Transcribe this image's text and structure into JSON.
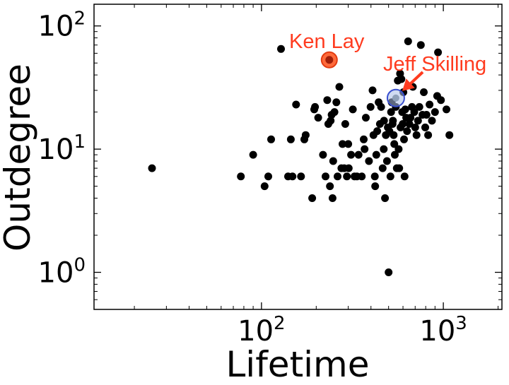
{
  "chart_data": {
    "type": "scatter",
    "xlabel": "Lifetime",
    "ylabel": "Outdegree",
    "xscale": "log",
    "yscale": "log",
    "xlim": [
      12,
      2100
    ],
    "ylim": [
      0.5,
      150
    ],
    "grid": false,
    "x_ticks": [
      {
        "base": "10",
        "exp": "2",
        "value": 100
      },
      {
        "base": "10",
        "exp": "3",
        "value": 1000
      }
    ],
    "y_ticks": [
      {
        "base": "10",
        "exp": "0",
        "value": 1
      },
      {
        "base": "10",
        "exp": "1",
        "value": 10
      },
      {
        "base": "10",
        "exp": "2",
        "value": 100
      }
    ],
    "series": [
      {
        "color": "#000000",
        "points": [
          [
            25,
            7
          ],
          [
            77,
            6
          ],
          [
            90,
            9
          ],
          [
            104,
            5
          ],
          [
            109,
            6
          ],
          [
            113,
            12
          ],
          [
            128,
            65
          ],
          [
            140,
            6
          ],
          [
            145,
            12
          ],
          [
            148,
            6
          ],
          [
            155,
            23
          ],
          [
            165,
            6
          ],
          [
            172,
            12
          ],
          [
            175,
            13
          ],
          [
            190,
            4
          ],
          [
            195,
            21
          ],
          [
            197,
            22
          ],
          [
            205,
            18
          ],
          [
            218,
            9
          ],
          [
            225,
            6
          ],
          [
            230,
            25
          ],
          [
            233,
            16
          ],
          [
            238,
            5
          ],
          [
            240,
            17
          ],
          [
            243,
            19
          ],
          [
            246,
            4
          ],
          [
            248,
            8
          ],
          [
            252,
            20
          ],
          [
            258,
            24
          ],
          [
            262,
            6
          ],
          [
            268,
            32
          ],
          [
            275,
            7
          ],
          [
            279,
            11
          ],
          [
            285,
            7
          ],
          [
            289,
            16
          ],
          [
            295,
            6
          ],
          [
            300,
            11
          ],
          [
            302,
            7
          ],
          [
            311,
            9
          ],
          [
            318,
            21
          ],
          [
            325,
            6
          ],
          [
            335,
            6
          ],
          [
            342,
            9
          ],
          [
            356,
            6
          ],
          [
            365,
            12
          ],
          [
            369,
            10
          ],
          [
            375,
            18
          ],
          [
            390,
            8
          ],
          [
            398,
            22
          ],
          [
            408,
            30
          ],
          [
            413,
            13
          ],
          [
            420,
            6
          ],
          [
            422,
            5
          ],
          [
            428,
            9
          ],
          [
            433,
            14
          ],
          [
            441,
            24
          ],
          [
            448,
            16
          ],
          [
            455,
            22
          ],
          [
            464,
            7
          ],
          [
            470,
            10
          ],
          [
            472,
            17
          ],
          [
            478,
            4
          ],
          [
            483,
            13
          ],
          [
            490,
            8
          ],
          [
            495,
            15
          ],
          [
            500,
            1
          ],
          [
            505,
            14
          ],
          [
            512,
            6
          ],
          [
            516,
            20
          ],
          [
            520,
            24
          ],
          [
            526,
            16
          ],
          [
            528,
            17
          ],
          [
            533,
            13
          ],
          [
            537,
            11
          ],
          [
            541,
            9
          ],
          [
            548,
            22
          ],
          [
            555,
            7
          ],
          [
            562,
            36
          ],
          [
            568,
            10
          ],
          [
            572,
            7
          ],
          [
            578,
            41
          ],
          [
            582,
            15
          ],
          [
            588,
            37
          ],
          [
            594,
            20
          ],
          [
            598,
            16
          ],
          [
            603,
            29
          ],
          [
            608,
            12
          ],
          [
            612,
            6
          ],
          [
            618,
            21
          ],
          [
            625,
            18
          ],
          [
            632,
            14
          ],
          [
            640,
            75
          ],
          [
            650,
            16
          ],
          [
            660,
            18
          ],
          [
            672,
            22
          ],
          [
            680,
            32
          ],
          [
            692,
            20
          ],
          [
            700,
            15
          ],
          [
            712,
            13
          ],
          [
            726,
            17
          ],
          [
            738,
            22
          ],
          [
            752,
            70
          ],
          [
            768,
            19
          ],
          [
            781,
            29
          ],
          [
            795,
            15
          ],
          [
            808,
            19
          ],
          [
            825,
            13
          ],
          [
            840,
            23
          ],
          [
            866,
            17
          ],
          [
            900,
            20
          ],
          [
            935,
            61
          ],
          [
            925,
            27
          ],
          [
            970,
            25
          ],
          [
            1040,
            21
          ],
          [
            1080,
            13
          ]
        ]
      }
    ],
    "highlights": [
      {
        "label": "Ken Lay",
        "x": 236,
        "y": 53,
        "color": "#ff3b1f"
      },
      {
        "label": "Jeff Skilling",
        "x": 548,
        "y": 26,
        "color": "#ff3b1f"
      }
    ]
  }
}
